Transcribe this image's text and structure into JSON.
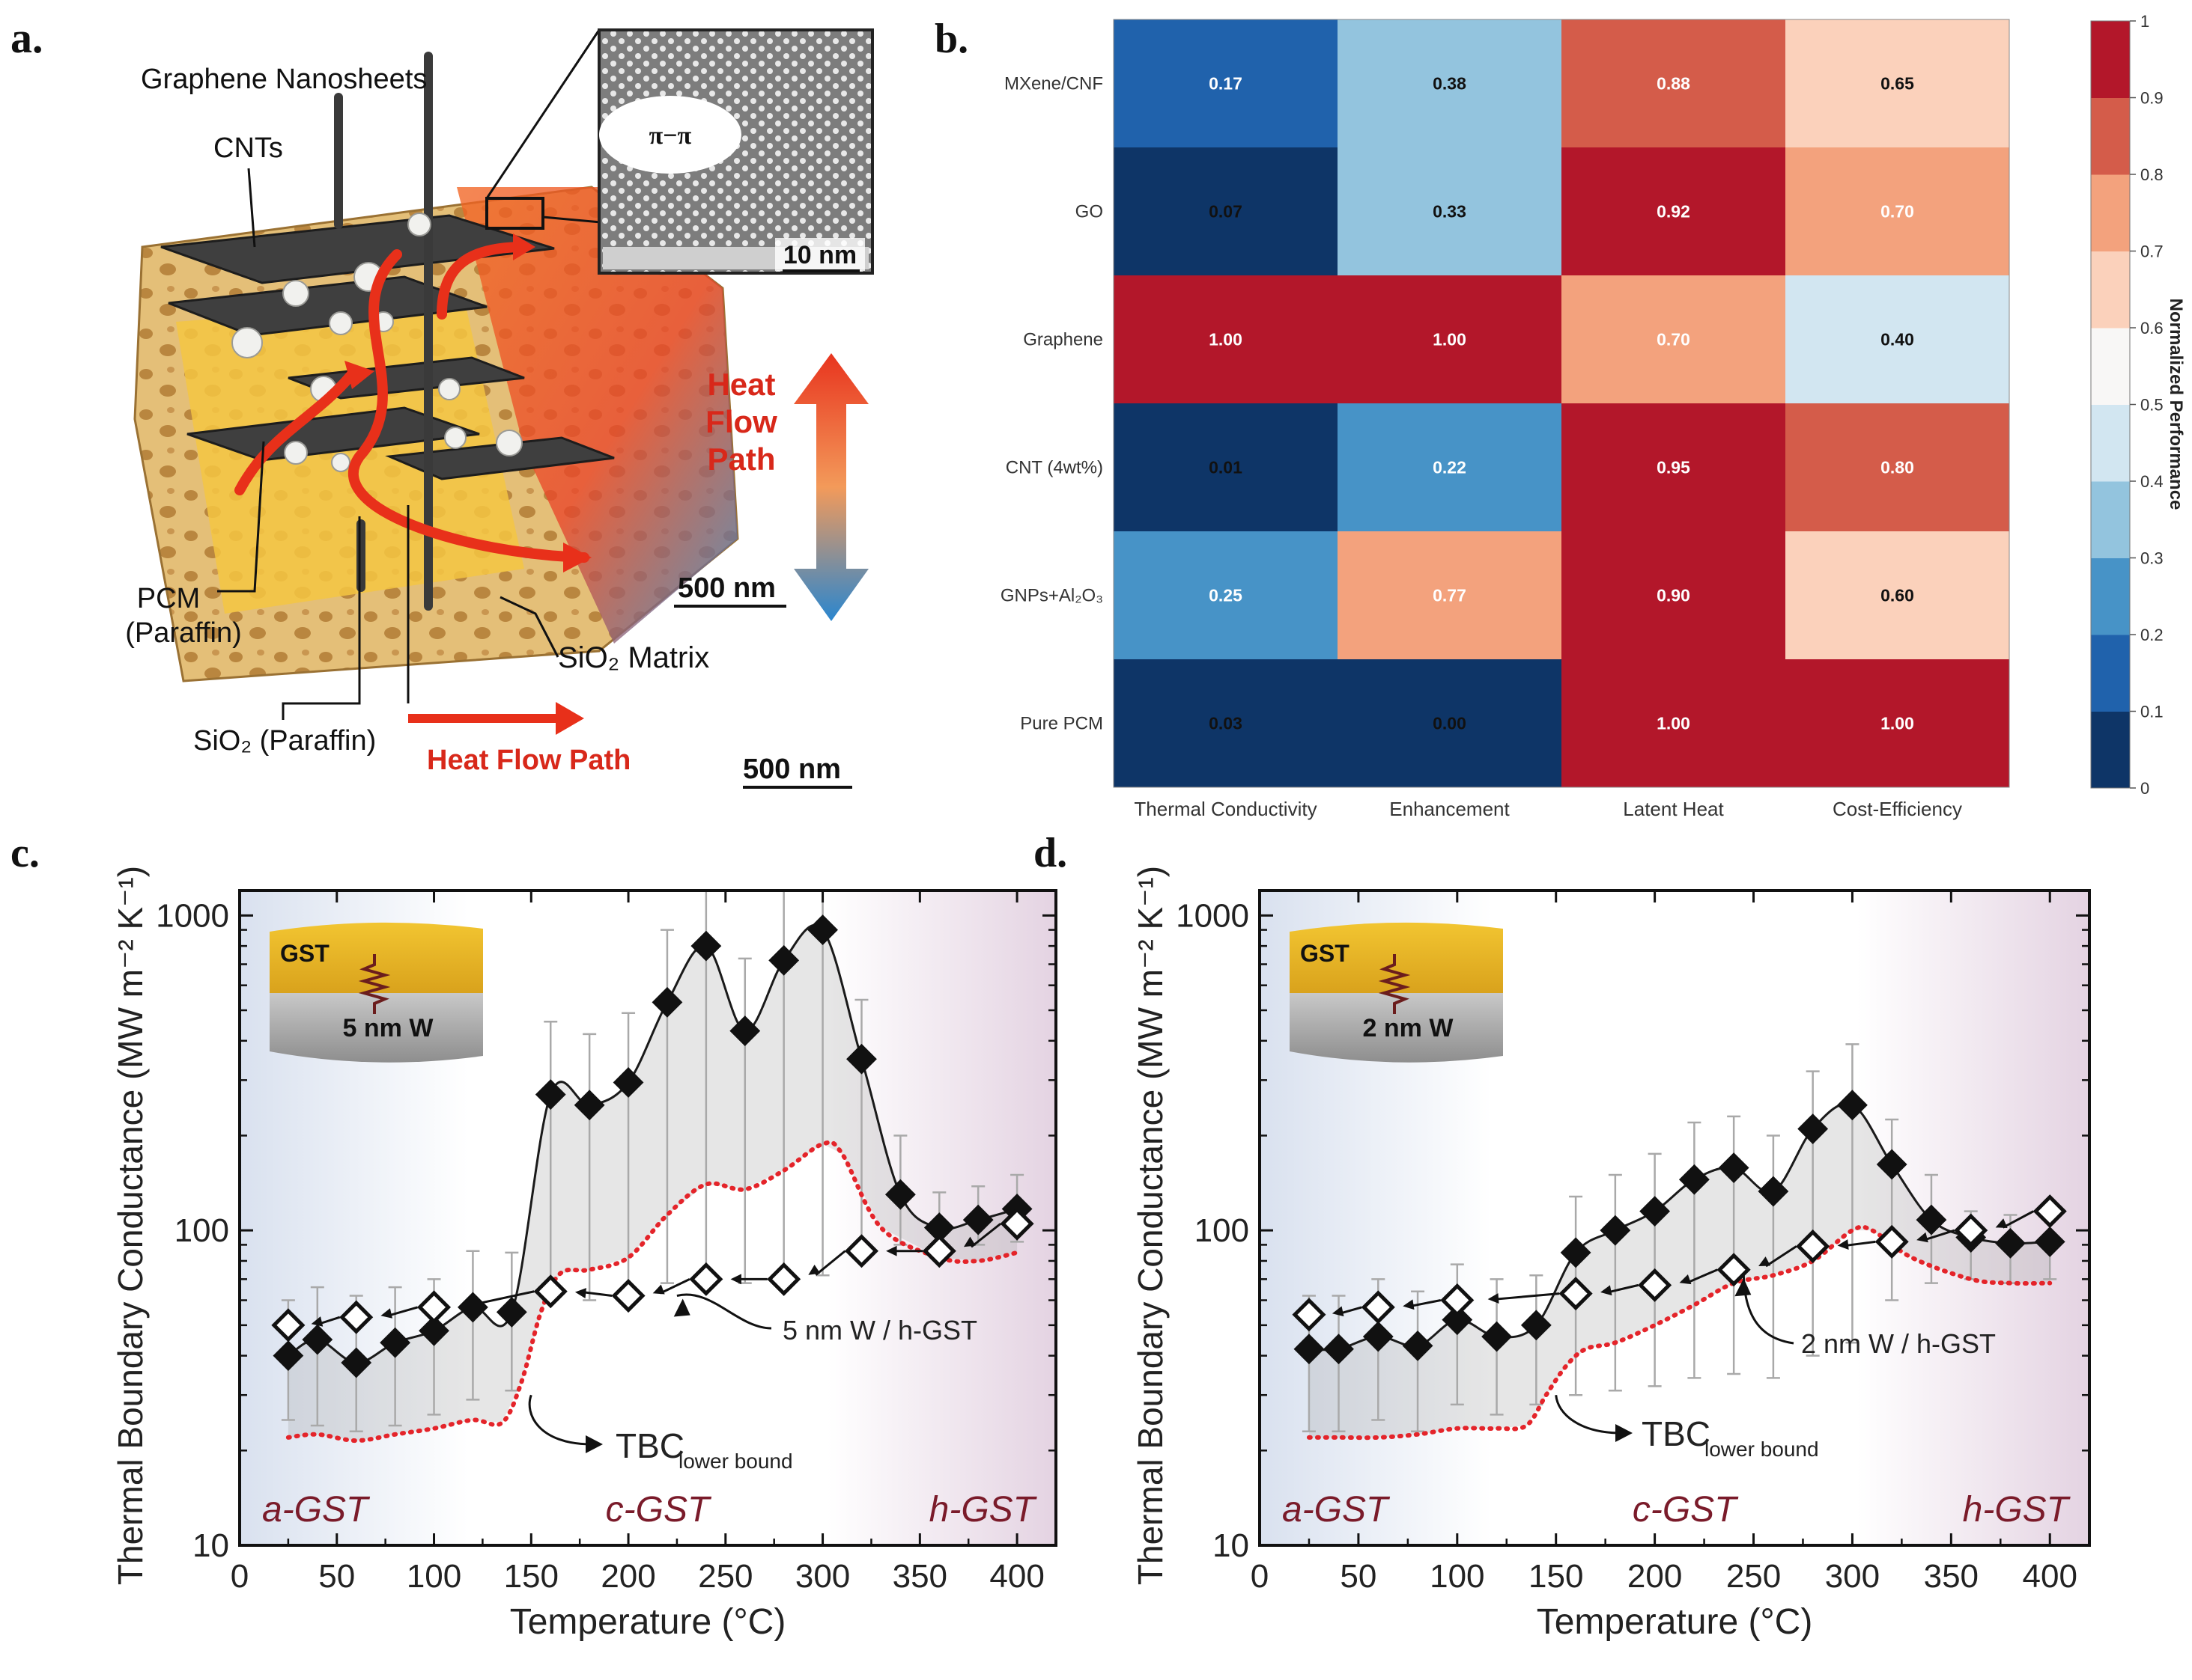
{
  "panels": {
    "a": "a.",
    "b": "b.",
    "c": "c.",
    "d": "d."
  },
  "panel_a": {
    "labels": {
      "graphene": "Graphene Nanosheets",
      "cnts": "CNTs",
      "pi_pi": "π−π",
      "inset_scale": "10 nm",
      "heat": "Heat",
      "flow": "Flow",
      "path": "Path",
      "scale_main": "500 nm",
      "pcm_1": "PCM",
      "pcm_2": "(Paraffin)",
      "sio2_matrix": "SiO₂ Matrix",
      "sio2_paraffin": "SiO₂ (Paraffin)",
      "heat_flow_path": "Heat Flow Path",
      "scale_bottom": "500 nm"
    },
    "colors": {
      "arrow": "#e8301a",
      "text_red": "#d8281a",
      "matrix": "#e7c27d",
      "sheet": "#3e3e3e",
      "pcm": "#f4c542"
    }
  },
  "chart_data": [
    {
      "type": "heatmap",
      "title": "",
      "rows": [
        "MXene/CNF",
        "GO",
        "Graphene",
        "CNT (4wt%)",
        "GNPs+Al₂O₃",
        "Pure PCM"
      ],
      "columns": [
        "Thermal Conductivity",
        "Enhancement",
        "Latent Heat",
        "Cost-Efficiency"
      ],
      "values": [
        [
          0.17,
          0.38,
          0.88,
          0.65
        ],
        [
          0.07,
          0.33,
          0.92,
          0.7
        ],
        [
          1.0,
          1.0,
          0.7,
          0.4
        ],
        [
          0.01,
          0.22,
          0.95,
          0.8
        ],
        [
          0.25,
          0.77,
          0.9,
          0.6
        ],
        [
          0.03,
          0.0,
          1.0,
          1.0
        ]
      ],
      "value_labels": [
        [
          "0.17",
          "0.38",
          "0.88",
          "0.65"
        ],
        [
          "0.07",
          "0.33",
          "0.92",
          "0.70"
        ],
        [
          "1.00",
          "1.00",
          "0.70",
          "0.40"
        ],
        [
          "0.01",
          "0.22",
          "0.95",
          "0.80"
        ],
        [
          "0.25",
          "0.77",
          "0.90",
          "0.60"
        ],
        [
          "0.03",
          "0.00",
          "1.00",
          "1.00"
        ]
      ],
      "colorbar": {
        "label": "Normalized Performance",
        "range": [
          0,
          1
        ],
        "ticks": [
          "0",
          "0.1",
          "0.2",
          "0.3",
          "0.4",
          "0.5",
          "0.6",
          "0.7",
          "0.8",
          "0.9",
          "1"
        ],
        "colors": [
          "#0e3567",
          "#2062ac",
          "#4793c7",
          "#93c4de",
          "#d2e6f1",
          "#f8f7f6",
          "#fbd1bb",
          "#f3a27d",
          "#d45c4a",
          "#b3172a"
        ]
      }
    },
    {
      "type": "scatter",
      "panel": "c",
      "xlabel": "Temperature (°C)",
      "ylabel": "Thermal Boundary Conductance (MW m⁻² K⁻¹)",
      "xlim": [
        0,
        420
      ],
      "ylim": [
        10,
        1200
      ],
      "yscale": "log",
      "xticks": [
        "0",
        "50",
        "100",
        "150",
        "200",
        "250",
        "300",
        "350",
        "400"
      ],
      "yticks": [
        "10",
        "100",
        "1000"
      ],
      "phase_labels": [
        "a-GST",
        "c-GST",
        "h-GST"
      ],
      "inset": {
        "top": "GST",
        "bottom": "5 nm W"
      },
      "annotations": {
        "hgst": "5 nm W / h-GST",
        "tbc_main": "TBC",
        "tbc_sub": "lower bound"
      },
      "series": [
        {
          "name": "filled",
          "x": [
            25,
            40,
            60,
            80,
            100,
            120,
            140,
            160,
            180,
            200,
            220,
            240,
            260,
            280,
            300,
            320,
            340,
            360,
            380,
            400
          ],
          "y": [
            40,
            45,
            38,
            44,
            48,
            57,
            55,
            270,
            250,
            295,
            530,
            800,
            430,
            720,
            900,
            350,
            130,
            102,
            108,
            117
          ],
          "err_hi": [
            60,
            66,
            62,
            66,
            70,
            86,
            85,
            460,
            420,
            490,
            900,
            1200,
            730,
            1200,
            1200,
            540,
            200,
            132,
            138,
            150
          ],
          "err_lo": [
            25,
            24,
            23,
            24,
            26,
            29,
            31,
            62,
            60,
            65,
            68,
            70,
            68,
            70,
            72,
            85,
            90,
            85,
            90,
            92
          ]
        },
        {
          "name": "open",
          "x": [
            25,
            60,
            100,
            160,
            200,
            240,
            280,
            320,
            360,
            400
          ],
          "y": [
            50,
            53,
            57,
            64,
            62,
            70,
            70,
            86,
            86,
            105
          ]
        },
        {
          "name": "TBC lower bound",
          "x": [
            25,
            40,
            60,
            80,
            100,
            120,
            135,
            145,
            155,
            165,
            180,
            200,
            220,
            240,
            260,
            280,
            300,
            310,
            330,
            360,
            380,
            400
          ],
          "y": [
            22,
            22.5,
            21.5,
            22.5,
            23.5,
            25,
            24.5,
            33,
            55,
            73,
            75,
            82,
            112,
            140,
            135,
            155,
            188,
            175,
            102,
            82,
            80,
            85
          ]
        }
      ]
    },
    {
      "type": "scatter",
      "panel": "d",
      "xlabel": "Temperature (°C)",
      "ylabel": "Thermal Boundary Conductance (MW m⁻² K⁻¹)",
      "xlim": [
        0,
        420
      ],
      "ylim": [
        10,
        1200
      ],
      "yscale": "log",
      "xticks": [
        "0",
        "50",
        "100",
        "150",
        "200",
        "250",
        "300",
        "350",
        "400"
      ],
      "yticks": [
        "10",
        "100",
        "1000"
      ],
      "phase_labels": [
        "a-GST",
        "c-GST",
        "h-GST"
      ],
      "inset": {
        "top": "GST",
        "bottom": "2 nm W"
      },
      "annotations": {
        "hgst": "2 nm W / h-GST",
        "tbc_main": "TBC",
        "tbc_sub": "lower bound"
      },
      "series": [
        {
          "name": "filled",
          "x": [
            25,
            40,
            60,
            80,
            100,
            120,
            140,
            160,
            180,
            200,
            220,
            240,
            260,
            280,
            300,
            320,
            340,
            360,
            380,
            400
          ],
          "y": [
            42,
            42,
            46,
            43,
            52,
            46,
            50,
            85,
            100,
            115,
            145,
            158,
            133,
            210,
            250,
            162,
            108,
            95,
            91,
            92
          ],
          "err_hi": [
            62,
            62,
            70,
            64,
            78,
            70,
            72,
            128,
            150,
            175,
            220,
            230,
            200,
            320,
            390,
            225,
            150,
            115,
            112,
            112
          ],
          "err_lo": [
            23,
            23,
            25,
            23,
            28,
            26,
            28,
            30,
            31,
            32,
            34,
            35,
            34,
            40,
            44,
            60,
            68,
            70,
            68,
            70
          ]
        },
        {
          "name": "open",
          "x": [
            25,
            60,
            100,
            160,
            200,
            240,
            280,
            320,
            360,
            400
          ],
          "y": [
            54,
            57,
            60,
            63,
            67,
            75,
            89,
            92,
            100,
            115
          ]
        },
        {
          "name": "TBC lower bound",
          "x": [
            25,
            40,
            60,
            80,
            100,
            120,
            135,
            145,
            155,
            165,
            180,
            200,
            220,
            240,
            260,
            280,
            300,
            310,
            330,
            360,
            380,
            400
          ],
          "y": [
            22,
            22,
            22,
            22.5,
            23.5,
            23.5,
            24,
            30,
            37,
            42,
            44,
            50,
            58,
            68,
            72,
            80,
            100,
            100,
            82,
            70,
            68,
            68
          ]
        }
      ]
    }
  ]
}
